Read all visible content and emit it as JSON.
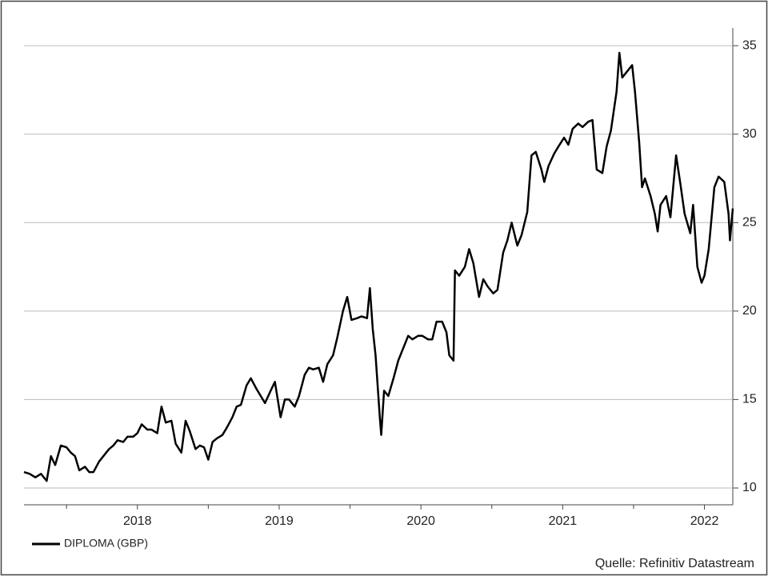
{
  "chart_data": {
    "type": "line",
    "source": "Quelle: Refinitiv Datastream",
    "x": [
      2017.2,
      2017.24,
      2017.28,
      2017.32,
      2017.36,
      2017.39,
      2017.42,
      2017.46,
      2017.5,
      2017.53,
      2017.56,
      2017.59,
      2017.63,
      2017.66,
      2017.69,
      2017.73,
      2017.76,
      2017.8,
      2017.83,
      2017.86,
      2017.9,
      2017.93,
      2017.97,
      2018.0,
      2018.03,
      2018.07,
      2018.1,
      2018.14,
      2018.17,
      2018.2,
      2018.24,
      2018.27,
      2018.31,
      2018.34,
      2018.37,
      2018.41,
      2018.44,
      2018.47,
      2018.5,
      2018.53,
      2018.56,
      2018.6,
      2018.63,
      2018.67,
      2018.7,
      2018.73,
      2018.77,
      2018.8,
      2018.84,
      2018.87,
      2018.9,
      2018.94,
      2018.97,
      2019.01,
      2019.04,
      2019.07,
      2019.11,
      2019.14,
      2019.18,
      2019.21,
      2019.24,
      2019.28,
      2019.31,
      2019.34,
      2019.38,
      2019.41,
      2019.45,
      2019.48,
      2019.51,
      2019.55,
      2019.58,
      2019.62,
      2019.64,
      2019.66,
      2019.68,
      2019.71,
      2019.72,
      2019.74,
      2019.77,
      2019.81,
      2019.84,
      2019.88,
      2019.91,
      2019.94,
      2019.98,
      2020.01,
      2020.05,
      2020.08,
      2020.11,
      2020.15,
      2020.18,
      2020.2,
      2020.23,
      2020.24,
      2020.27,
      2020.31,
      2020.34,
      2020.37,
      2020.41,
      2020.44,
      2020.47,
      2020.51,
      2020.54,
      2020.58,
      2020.61,
      2020.64,
      2020.68,
      2020.71,
      2020.75,
      2020.78,
      2020.81,
      2020.85,
      2020.87,
      2020.9,
      2020.94,
      2020.97,
      2021.01,
      2021.04,
      2021.07,
      2021.11,
      2021.14,
      2021.18,
      2021.21,
      2021.24,
      2021.28,
      2021.31,
      2021.34,
      2021.38,
      2021.4,
      2021.42,
      2021.46,
      2021.49,
      2021.51,
      2021.54,
      2021.56,
      2021.58,
      2021.62,
      2021.65,
      2021.67,
      2021.69,
      2021.73,
      2021.76,
      2021.8,
      2021.83,
      2021.86,
      2021.9,
      2021.92,
      2021.95,
      2021.98,
      2022.0,
      2022.03,
      2022.07,
      2022.1,
      2022.14,
      2022.17,
      2022.18,
      2022.2
    ],
    "series": [
      {
        "name": "DIPLOMA (GBP)",
        "color": "#000000",
        "values": [
          10.9,
          10.8,
          10.6,
          10.8,
          10.4,
          11.8,
          11.3,
          12.4,
          12.3,
          12.0,
          11.8,
          11.0,
          11.2,
          10.9,
          10.9,
          11.5,
          11.8,
          12.2,
          12.4,
          12.7,
          12.6,
          12.9,
          12.9,
          13.1,
          13.6,
          13.3,
          13.3,
          13.1,
          14.6,
          13.7,
          13.8,
          12.5,
          12.0,
          13.8,
          13.2,
          12.2,
          12.4,
          12.3,
          11.6,
          12.6,
          12.8,
          13.0,
          13.4,
          14.0,
          14.6,
          14.7,
          15.8,
          16.2,
          15.6,
          15.2,
          14.8,
          15.5,
          16.0,
          14.0,
          15.0,
          15.0,
          14.6,
          15.2,
          16.4,
          16.8,
          16.7,
          16.8,
          16.0,
          17.0,
          17.5,
          18.5,
          20.0,
          20.8,
          19.5,
          19.6,
          19.7,
          19.6,
          21.3,
          19.0,
          17.5,
          14.0,
          13.0,
          15.5,
          15.2,
          16.3,
          17.2,
          18.0,
          18.6,
          18.4,
          18.6,
          18.6,
          18.4,
          18.4,
          19.4,
          19.4,
          18.8,
          17.5,
          17.2,
          22.3,
          22.0,
          22.5,
          23.5,
          22.7,
          20.8,
          21.8,
          21.4,
          21.0,
          21.2,
          23.3,
          24.0,
          25.0,
          23.7,
          24.3,
          25.6,
          28.8,
          29.0,
          28.0,
          27.3,
          28.2,
          28.9,
          29.3,
          29.8,
          29.4,
          30.3,
          30.6,
          30.4,
          30.7,
          30.8,
          28.0,
          27.8,
          29.3,
          30.2,
          32.4,
          34.6,
          33.2,
          33.6,
          33.9,
          32.4,
          29.5,
          27.0,
          27.5,
          26.5,
          25.5,
          24.5,
          26.0,
          26.5,
          25.3,
          28.8,
          27.2,
          25.5,
          24.4,
          26.0,
          22.5,
          21.6,
          22.0,
          23.5,
          27.0,
          27.6,
          27.3,
          25.5,
          24.0,
          25.8
        ]
      }
    ],
    "xlim": [
      2017.2,
      2022.2
    ],
    "xticks": [
      2018,
      2019,
      2020,
      2021,
      2022
    ],
    "xminorticks": [
      2017.5,
      2018.5,
      2019.5,
      2020.5,
      2021.5
    ],
    "ylim": [
      9.05,
      36
    ],
    "yticks": [
      10,
      15,
      20,
      25,
      30,
      35
    ],
    "grid": true
  }
}
